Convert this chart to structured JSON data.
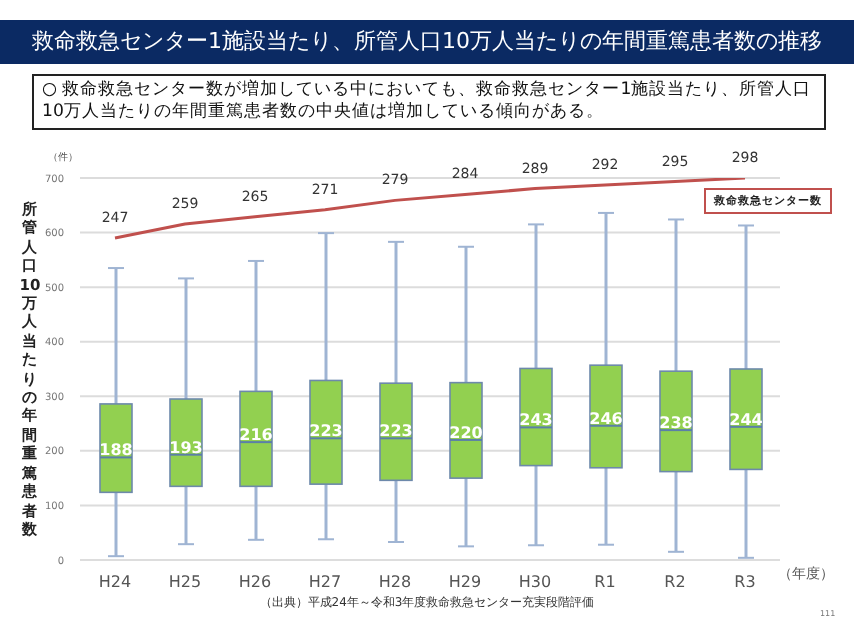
{
  "chart_data": {
    "type": "box",
    "title": "救命救急センター1施設当たり、所管人口10万人当たりの年間重篤患者数の推移",
    "subtitle": "○ 救命救急センター数が増加している中においても、救命救急センター1施設当たり、所管人口10万人当たりの年間重篤患者数の中央値は増加している傾向がある。",
    "ylabel": "所管人口10万人当たりの年間重篤患者数",
    "xlabel": "（年度）",
    "annotations": [
      "（件）",
      "（出典）平成24年～令和3年度救命救急センター充実段階評価",
      "111"
    ],
    "categories": [
      "H24",
      "H25",
      "H26",
      "H27",
      "H28",
      "H29",
      "H30",
      "R1",
      "R2",
      "R3"
    ],
    "ylim": [
      0,
      700
    ],
    "yticks": [
      0,
      100,
      200,
      300,
      400,
      500,
      600,
      700
    ],
    "grid": "y",
    "legend": false,
    "data_labels": true,
    "marker": "none",
    "series": [
      {
        "type": "box",
        "color": "#92d050",
        "value_labels": [
          "188",
          "193",
          "216",
          "223",
          "223",
          "220",
          "243",
          "246",
          "238",
          "244"
        ],
        "boxes": [
          {
            "low": 7,
            "q1": 124,
            "median": 188,
            "q3": 286,
            "high": 535
          },
          {
            "low": 29,
            "q1": 135,
            "median": 193,
            "q3": 295,
            "high": 516
          },
          {
            "low": 37,
            "q1": 135,
            "median": 216,
            "q3": 309,
            "high": 548
          },
          {
            "low": 38,
            "q1": 139,
            "median": 223,
            "q3": 329,
            "high": 599
          },
          {
            "low": 33,
            "q1": 146,
            "median": 223,
            "q3": 324,
            "high": 583
          },
          {
            "low": 25,
            "q1": 150,
            "median": 220,
            "q3": 325,
            "high": 574
          },
          {
            "low": 27,
            "q1": 173,
            "median": 243,
            "q3": 351,
            "high": 615
          },
          {
            "low": 28,
            "q1": 169,
            "median": 246,
            "q3": 357,
            "high": 636
          },
          {
            "low": 15,
            "q1": 162,
            "median": 238,
            "q3": 346,
            "high": 624
          },
          {
            "low": 4,
            "q1": 166,
            "median": 244,
            "q3": 350,
            "high": 613
          }
        ]
      },
      {
        "type": "line",
        "name": "救命救急センター数",
        "axis": "y2",
        "color": "#c0504d",
        "values": [
          247,
          259,
          265,
          271,
          279,
          284,
          289,
          292,
          295,
          298
        ]
      }
    ]
  }
}
